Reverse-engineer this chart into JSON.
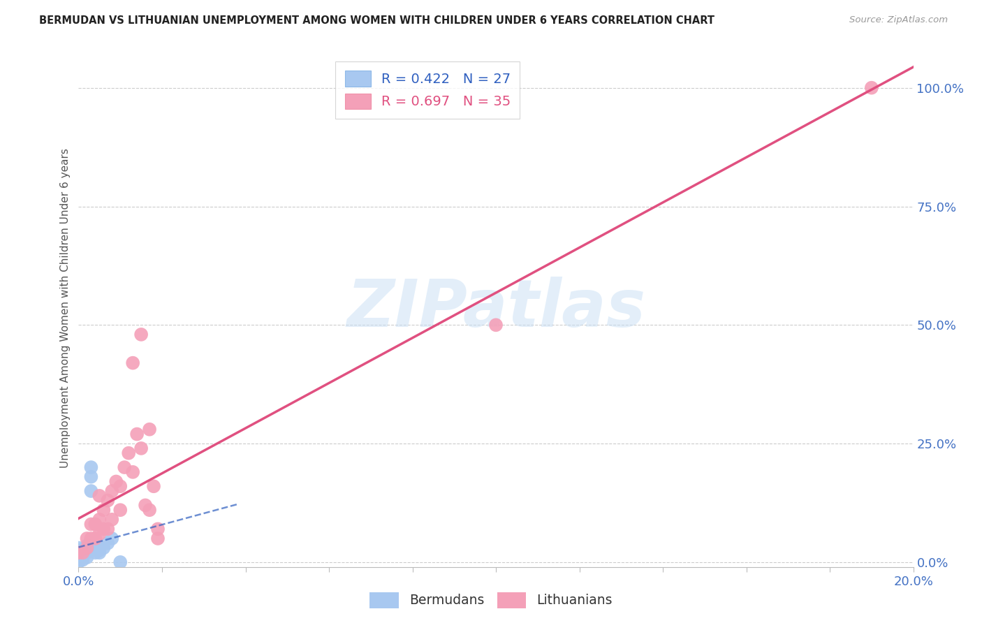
{
  "title": "BERMUDAN VS LITHUANIAN UNEMPLOYMENT AMONG WOMEN WITH CHILDREN UNDER 6 YEARS CORRELATION CHART",
  "source": "Source: ZipAtlas.com",
  "ylabel": "Unemployment Among Women with Children Under 6 years",
  "bermuda_R": 0.422,
  "bermuda_N": 27,
  "lithuania_R": 0.697,
  "lithuania_N": 35,
  "bermuda_color": "#A8C8F0",
  "lithuania_color": "#F4A0B8",
  "bermuda_line_color": "#3060C0",
  "lithuania_line_color": "#E05080",
  "watermark_text": "ZIPatlas",
  "legend_label_bermuda": "Bermudans",
  "legend_label_lithuania": "Lithuanians",
  "bermuda_x": [
    0.0,
    0.0,
    0.0,
    0.0,
    0.0,
    0.0,
    0.0,
    0.001,
    0.001,
    0.001,
    0.001,
    0.001,
    0.002,
    0.002,
    0.002,
    0.002,
    0.003,
    0.003,
    0.003,
    0.004,
    0.004,
    0.005,
    0.005,
    0.006,
    0.007,
    0.008,
    0.01
  ],
  "bermuda_y": [
    0.0,
    0.005,
    0.01,
    0.015,
    0.02,
    0.025,
    0.03,
    0.005,
    0.01,
    0.015,
    0.02,
    0.025,
    0.01,
    0.02,
    0.03,
    0.035,
    0.15,
    0.18,
    0.2,
    0.02,
    0.03,
    0.02,
    0.025,
    0.03,
    0.04,
    0.05,
    0.0
  ],
  "lithuania_x": [
    0.0,
    0.001,
    0.002,
    0.002,
    0.003,
    0.003,
    0.004,
    0.004,
    0.005,
    0.005,
    0.005,
    0.006,
    0.006,
    0.007,
    0.007,
    0.008,
    0.008,
    0.009,
    0.01,
    0.01,
    0.011,
    0.012,
    0.013,
    0.013,
    0.014,
    0.015,
    0.015,
    0.016,
    0.017,
    0.017,
    0.018,
    0.019,
    0.019,
    0.1,
    0.19
  ],
  "lithuania_y": [
    0.02,
    0.02,
    0.03,
    0.05,
    0.05,
    0.08,
    0.05,
    0.08,
    0.06,
    0.09,
    0.14,
    0.07,
    0.11,
    0.07,
    0.13,
    0.09,
    0.15,
    0.17,
    0.11,
    0.16,
    0.2,
    0.23,
    0.19,
    0.42,
    0.27,
    0.24,
    0.48,
    0.12,
    0.11,
    0.28,
    0.16,
    0.05,
    0.07,
    0.5,
    1.0
  ],
  "xlim": [
    0.0,
    0.2
  ],
  "ylim": [
    -0.01,
    1.08
  ],
  "y_ticks": [
    0.0,
    0.25,
    0.5,
    0.75,
    1.0
  ],
  "x_ticks": [
    0.0,
    0.02,
    0.04,
    0.06,
    0.08,
    0.1,
    0.12,
    0.14,
    0.16,
    0.18,
    0.2
  ],
  "grid_color": "#CCCCCC",
  "background_color": "#FFFFFF"
}
